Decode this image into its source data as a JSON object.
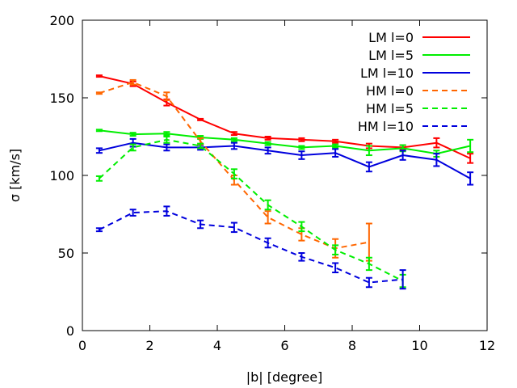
{
  "chart_data": {
    "type": "line",
    "title": "",
    "xlabel": "|b| [degree]",
    "ylabel": "σ [km/s]",
    "xlim": [
      0,
      12
    ],
    "ylim": [
      0,
      200
    ],
    "xticks": [
      0,
      2,
      4,
      6,
      8,
      10,
      12
    ],
    "xtick_labels": [
      "0",
      "2",
      "4",
      "6",
      "8",
      "10",
      "12"
    ],
    "yticks": [
      0,
      50,
      100,
      150,
      200
    ],
    "ytick_labels": [
      "0",
      "50",
      "100",
      "150",
      "200"
    ],
    "grid": false,
    "legend_position": "top-right",
    "series": [
      {
        "name": "LM l=0",
        "color": "#ff0000",
        "dash": "solid",
        "x": [
          0.5,
          1.5,
          2.5,
          3.5,
          4.5,
          5.5,
          6.5,
          7.5,
          8.5,
          9.5,
          10.5,
          11.5
        ],
        "y": [
          164,
          159,
          147,
          136,
          127,
          124,
          123,
          122,
          119,
          118,
          121,
          111
        ],
        "err": [
          0.5,
          1.5,
          2,
          0.5,
          1,
          1,
          1,
          1,
          1.5,
          1.5,
          3,
          3
        ]
      },
      {
        "name": "LM l=5",
        "color": "#00ee00",
        "dash": "solid",
        "x": [
          0.5,
          1.5,
          2.5,
          3.5,
          4.5,
          5.5,
          6.5,
          7.5,
          8.5,
          9.5,
          10.5,
          11.5
        ],
        "y": [
          129,
          126.5,
          127,
          124.5,
          123,
          120.5,
          118,
          119,
          116,
          117.5,
          114,
          119
        ],
        "err": [
          0.5,
          1,
          1,
          1,
          1,
          1,
          1,
          1,
          3,
          2,
          2,
          4
        ]
      },
      {
        "name": "LM l=10",
        "color": "#0000dd",
        "dash": "solid",
        "x": [
          0.5,
          1.5,
          2.5,
          3.5,
          4.5,
          5.5,
          6.5,
          7.5,
          8.5,
          9.5,
          10.5,
          11.5
        ],
        "y": [
          116,
          121,
          118,
          118,
          119,
          116,
          113,
          114.5,
          105.5,
          113,
          110,
          98
        ],
        "err": [
          1.5,
          2.5,
          2,
          1.5,
          2,
          2,
          2.5,
          2.5,
          3,
          3,
          4,
          4
        ]
      },
      {
        "name": "HM l=0",
        "color": "#ff6600",
        "dash": "dashed",
        "x": [
          0.5,
          1.5,
          2.5,
          3.5,
          4.5,
          5.5,
          6.5,
          7.5,
          8.5
        ],
        "y": [
          153,
          160,
          151,
          122,
          97,
          73,
          62,
          53,
          57
        ],
        "err": [
          0.5,
          1.5,
          2.5,
          2,
          3,
          4,
          4,
          6,
          12
        ]
      },
      {
        "name": "HM l=5",
        "color": "#00ee00",
        "dash": "dashed",
        "x": [
          0.5,
          1.5,
          2.5,
          3.5,
          4.5,
          5.5,
          6.5,
          7.5,
          8.5,
          9.5
        ],
        "y": [
          98,
          118,
          123,
          119,
          101,
          81,
          67,
          52,
          43,
          32
        ],
        "err": [
          1.5,
          2,
          2,
          1.5,
          3,
          3,
          3,
          3,
          4,
          4
        ]
      },
      {
        "name": "HM l=10",
        "color": "#0000dd",
        "dash": "dashed",
        "x": [
          0.5,
          1.5,
          2.5,
          3.5,
          4.5,
          5.5,
          6.5,
          7.5,
          8.5,
          9.5
        ],
        "y": [
          65,
          76,
          77,
          68.5,
          66.5,
          56.5,
          47.5,
          40.5,
          31,
          33
        ],
        "err": [
          1,
          2,
          3,
          2.5,
          3,
          3,
          2.5,
          3,
          3,
          6
        ]
      }
    ]
  }
}
